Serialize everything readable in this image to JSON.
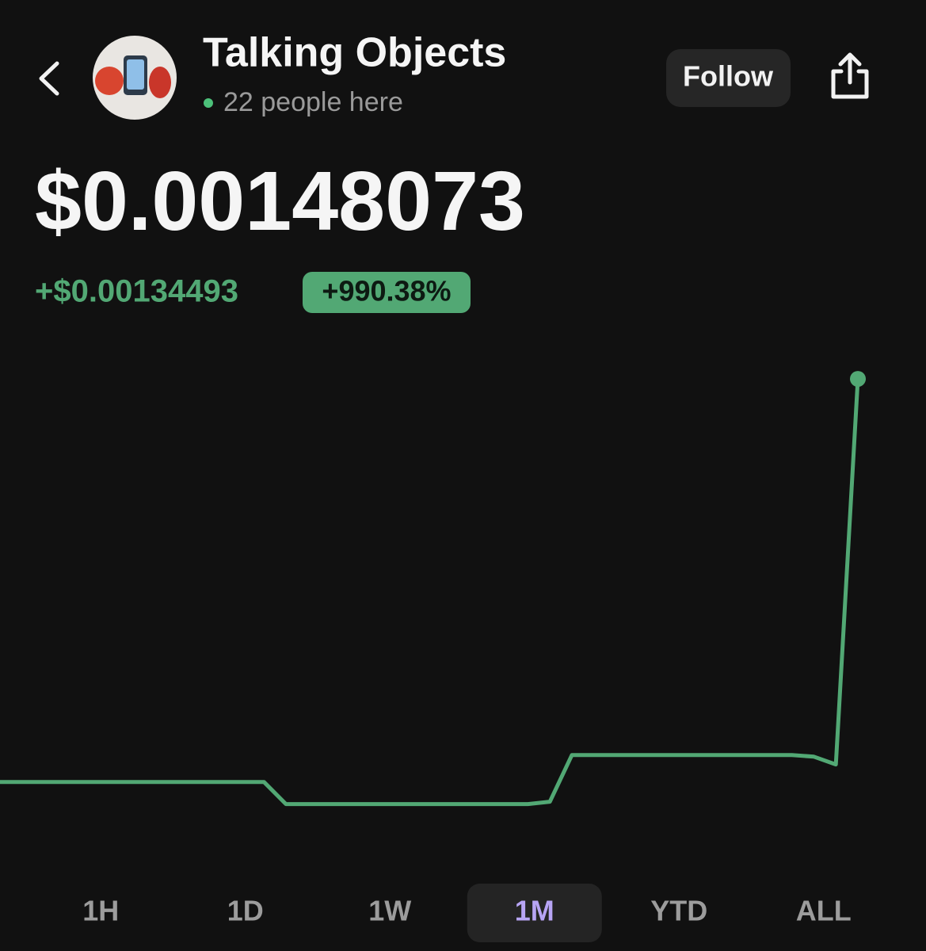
{
  "header": {
    "title": "Talking Objects",
    "subtitle": "22 people here",
    "follow": "Follow"
  },
  "price": "$0.00148073",
  "change": "+$0.00134493",
  "change_percent": "+990.38%",
  "chart_data": {
    "type": "line",
    "color": "#52a874",
    "values": [
      0.0001358,
      0.0001358,
      0.0001358,
      0.0001358,
      0.0001358,
      0.0001358,
      0.0001358,
      0.0001358,
      0.0001358,
      0.0001358,
      0.0001358,
      0.0001358,
      0.0001358,
      6.18e-05,
      6.18e-05,
      6.18e-05,
      6.18e-05,
      6.18e-05,
      6.18e-05,
      6.18e-05,
      6.18e-05,
      6.18e-05,
      6.18e-05,
      6.18e-05,
      6.18e-05,
      6.98e-05,
      0.0002256,
      0.0002256,
      0.0002256,
      0.0002256,
      0.0002256,
      0.0002256,
      0.0002256,
      0.0002256,
      0.0002256,
      0.0002256,
      0.0002256,
      0.00022,
      0.000194,
      0.00148073
    ],
    "ylim": [
      0,
      0.0016
    ]
  },
  "tabs": [
    "1H",
    "1D",
    "1W",
    "1M",
    "YTD",
    "ALL"
  ],
  "active_tab": 3
}
